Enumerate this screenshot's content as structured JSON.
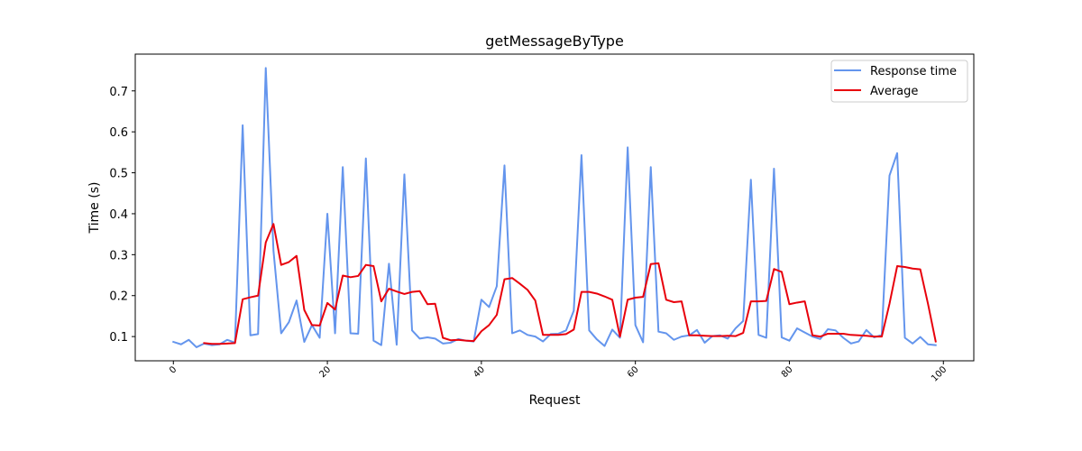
{
  "chart_data": {
    "type": "line",
    "title": "getMessageByType",
    "xlabel": "Request",
    "ylabel": "Time (s)",
    "xlim": [
      -4.95,
      103.95
    ],
    "ylim": [
      0.0408,
      0.7898
    ],
    "xticks": [
      0,
      20,
      40,
      60,
      80,
      100
    ],
    "yticks": [
      0.1,
      0.2,
      0.3,
      0.4,
      0.5,
      0.6,
      0.7
    ],
    "grid": false,
    "legend": "top-right",
    "series": [
      {
        "name": "Response time",
        "color": "#6495ED",
        "x": [
          0,
          1,
          2,
          3,
          4,
          5,
          6,
          7,
          8,
          9,
          10,
          11,
          12,
          13,
          14,
          15,
          16,
          17,
          18,
          19,
          20,
          21,
          22,
          23,
          24,
          25,
          26,
          27,
          28,
          29,
          30,
          31,
          32,
          33,
          34,
          35,
          36,
          37,
          38,
          39,
          40,
          41,
          42,
          43,
          44,
          45,
          46,
          47,
          48,
          49,
          50,
          51,
          52,
          53,
          54,
          55,
          56,
          57,
          58,
          59,
          60,
          61,
          62,
          63,
          64,
          65,
          66,
          67,
          68,
          69,
          70,
          71,
          72,
          73,
          74,
          75,
          76,
          77,
          78,
          79,
          80,
          81,
          82,
          83,
          84,
          85,
          86,
          87,
          88,
          89,
          90,
          91,
          92,
          93,
          94,
          95,
          96,
          97,
          98,
          99
        ],
        "y": [
          0.087,
          0.081,
          0.092,
          0.074,
          0.083,
          0.079,
          0.081,
          0.092,
          0.085,
          0.616,
          0.103,
          0.106,
          0.756,
          0.31,
          0.108,
          0.135,
          0.188,
          0.087,
          0.128,
          0.097,
          0.4,
          0.108,
          0.514,
          0.108,
          0.107,
          0.535,
          0.09,
          0.079,
          0.278,
          0.08,
          0.496,
          0.115,
          0.095,
          0.098,
          0.095,
          0.083,
          0.085,
          0.094,
          0.09,
          0.088,
          0.19,
          0.172,
          0.223,
          0.518,
          0.108,
          0.115,
          0.104,
          0.1,
          0.088,
          0.106,
          0.107,
          0.115,
          0.163,
          0.543,
          0.115,
          0.093,
          0.077,
          0.117,
          0.097,
          0.562,
          0.128,
          0.086,
          0.514,
          0.112,
          0.108,
          0.092,
          0.1,
          0.103,
          0.116,
          0.085,
          0.101,
          0.103,
          0.095,
          0.12,
          0.138,
          0.483,
          0.104,
          0.097,
          0.51,
          0.098,
          0.09,
          0.12,
          0.11,
          0.1,
          0.094,
          0.118,
          0.115,
          0.097,
          0.083,
          0.088,
          0.116,
          0.098,
          0.104,
          0.493,
          0.548,
          0.097,
          0.083,
          0.099,
          0.081,
          0.079
        ]
      },
      {
        "name": "Average",
        "color": "#E8000B",
        "x": [
          4,
          5,
          6,
          7,
          8,
          9,
          10,
          11,
          12,
          13,
          14,
          15,
          16,
          17,
          18,
          19,
          20,
          21,
          22,
          23,
          24,
          25,
          26,
          27,
          28,
          29,
          30,
          31,
          32,
          33,
          34,
          35,
          36,
          37,
          38,
          39,
          40,
          41,
          42,
          43,
          44,
          45,
          46,
          47,
          48,
          49,
          50,
          51,
          52,
          53,
          54,
          55,
          56,
          57,
          58,
          59,
          60,
          61,
          62,
          63,
          64,
          65,
          66,
          67,
          68,
          69,
          70,
          71,
          72,
          73,
          74,
          75,
          76,
          77,
          78,
          79,
          80,
          81,
          82,
          83,
          84,
          85,
          86,
          87,
          88,
          89,
          90,
          91,
          92,
          93,
          94,
          95,
          96,
          97,
          98,
          99
        ],
        "y": [
          0.084,
          0.082,
          0.082,
          0.083,
          0.084,
          0.191,
          0.196,
          0.2,
          0.33,
          0.375,
          0.275,
          0.282,
          0.297,
          0.165,
          0.128,
          0.127,
          0.182,
          0.166,
          0.249,
          0.245,
          0.248,
          0.275,
          0.272,
          0.186,
          0.217,
          0.21,
          0.204,
          0.209,
          0.211,
          0.179,
          0.18,
          0.097,
          0.091,
          0.092,
          0.09,
          0.089,
          0.113,
          0.128,
          0.153,
          0.24,
          0.243,
          0.229,
          0.214,
          0.188,
          0.104,
          0.104,
          0.104,
          0.106,
          0.117,
          0.209,
          0.209,
          0.205,
          0.198,
          0.19,
          0.1,
          0.19,
          0.195,
          0.197,
          0.277,
          0.279,
          0.19,
          0.184,
          0.186,
          0.103,
          0.103,
          0.102,
          0.101,
          0.101,
          0.102,
          0.101,
          0.109,
          0.186,
          0.186,
          0.187,
          0.265,
          0.258,
          0.179,
          0.183,
          0.186,
          0.103,
          0.1,
          0.107,
          0.107,
          0.107,
          0.104,
          0.103,
          0.102,
          0.1,
          0.1,
          0.18,
          0.272,
          0.27,
          0.266,
          0.264,
          0.18,
          0.088
        ]
      }
    ]
  }
}
